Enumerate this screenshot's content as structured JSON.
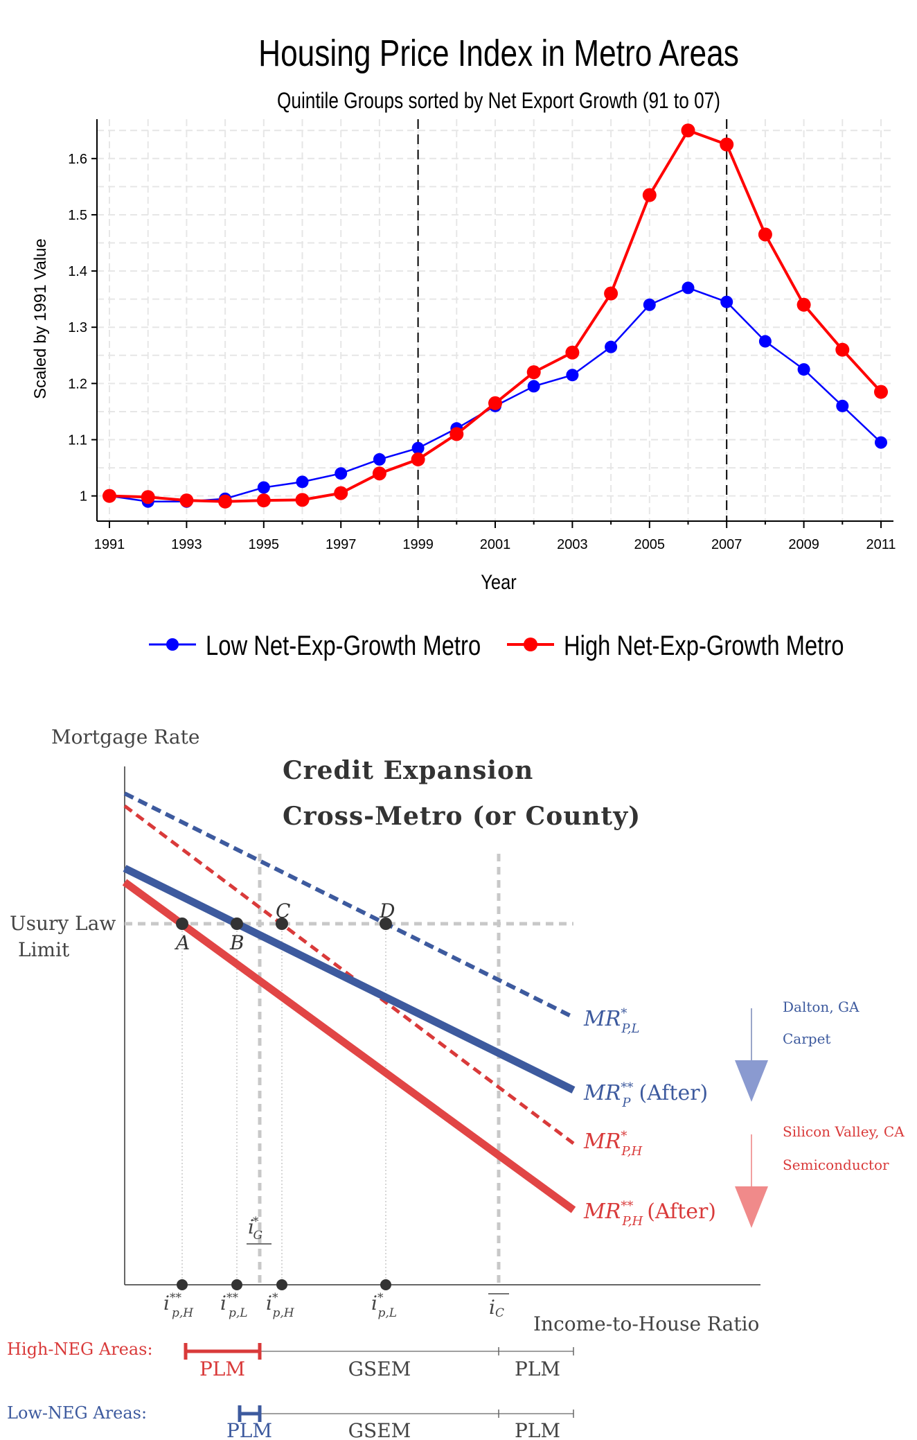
{
  "top_chart": {
    "title": "Housing Price Index in Metro Areas",
    "subtitle": "Quintile Groups sorted by Net Export Growth (91 to 07)",
    "xlabel": "Year",
    "ylabel": "Scaled by 1991 Value",
    "x_tick_labels": [
      "1991",
      "1993",
      "1995",
      "1997",
      "1999",
      "2001",
      "2003",
      "2005",
      "2007",
      "2009",
      "2011"
    ],
    "y_tick_labels": [
      "1",
      "1.1",
      "1.2",
      "1.3",
      "1.4",
      "1.5",
      "1.6"
    ],
    "legend": {
      "low_label": "Low Net-Exp-Growth Metro",
      "high_label": "High Net-Exp-Growth Metro"
    },
    "colors": {
      "low": "#0000ff",
      "high": "#ff0000"
    }
  },
  "chart_data": [
    {
      "type": "line",
      "title": "Housing Price Index in Metro Areas",
      "subtitle": "Quintile Groups sorted by Net Export Growth (91 to 07)",
      "xlabel": "Year",
      "ylabel": "Scaled by 1991 Value",
      "x": [
        1991,
        1992,
        1993,
        1994,
        1995,
        1996,
        1997,
        1998,
        1999,
        2000,
        2001,
        2002,
        2003,
        2004,
        2005,
        2006,
        2007,
        2008,
        2009,
        2010,
        2011
      ],
      "xlim": [
        1991,
        2011
      ],
      "ylim": [
        0.97,
        1.67
      ],
      "grid": true,
      "legend_position": "bottom",
      "vertical_reference_lines": [
        1999,
        2007
      ],
      "series": [
        {
          "name": "Low Net-Exp-Growth Metro",
          "color": "#0000ff",
          "values": [
            1.0,
            0.99,
            0.99,
            0.995,
            1.015,
            1.025,
            1.04,
            1.065,
            1.085,
            1.12,
            1.16,
            1.195,
            1.215,
            1.265,
            1.34,
            1.37,
            1.345,
            1.275,
            1.225,
            1.16,
            1.095
          ]
        },
        {
          "name": "High Net-Exp-Growth Metro",
          "color": "#ff0000",
          "values": [
            1.0,
            0.998,
            0.992,
            0.99,
            0.992,
            0.993,
            1.005,
            1.04,
            1.065,
            1.11,
            1.165,
            1.22,
            1.255,
            1.36,
            1.535,
            1.65,
            1.625,
            1.465,
            1.34,
            1.26,
            1.185
          ]
        }
      ]
    },
    {
      "type": "line",
      "title": "Credit Expansion",
      "subtitle": "Cross-Metro (or County)",
      "xlabel": "Income-to-House Ratio",
      "ylabel": "Mortgage Rate",
      "series": [
        {
          "name": "MR*_{P,L}",
          "color": "#3d5a9e",
          "style": "dashed"
        },
        {
          "name": "MR**_P (After)",
          "color": "#3d5a9e",
          "style": "solid"
        },
        {
          "name": "MR*_{P,H}",
          "color": "#d93a3a",
          "style": "dashed"
        },
        {
          "name": "MR**_{P,H} (After)",
          "color": "#d93a3a",
          "style": "solid"
        }
      ]
    }
  ],
  "bottom_diagram": {
    "title": "Credit Expansion",
    "subtitle": "Cross-Metro (or County)",
    "y_axis_label": "Mortgage Rate",
    "x_axis_label": "Income-to-House Ratio",
    "usury_label_line1": "Usury Law",
    "usury_label_line2": "Limit",
    "points": [
      "A",
      "B",
      "C",
      "D"
    ],
    "line_labels": {
      "mr_pl": {
        "base": "MR",
        "sup": "*",
        "sub": "P,L",
        "suffix": ""
      },
      "mr_p_after": {
        "base": "MR",
        "sup": "**",
        "sub": "P",
        "suffix": "(After)"
      },
      "mr_ph": {
        "base": "MR",
        "sup": "*",
        "sub": "P,H",
        "suffix": ""
      },
      "mr_ph_after": {
        "base": "MR",
        "sup": "**",
        "sub": "P,H",
        "suffix": "(After)"
      }
    },
    "x_tick_labels": [
      {
        "base": "i",
        "sup": "**",
        "sub": "p,H"
      },
      {
        "base": "i",
        "sup": "**",
        "sub": "p,L"
      },
      {
        "base": "i",
        "sup": "*",
        "sub": "p,H"
      },
      {
        "base": "i",
        "sup": "*",
        "sub": "p,L"
      },
      {
        "base": "i",
        "sup": "",
        "sub": "C"
      }
    ],
    "ig_label": {
      "base": "i",
      "sup": "*",
      "sub": "G"
    },
    "annotations": {
      "low": {
        "place": "Dalton, GA",
        "industry": "Carpet",
        "color": "#3d5a9e"
      },
      "high": {
        "place": "Silicon Valley, CA",
        "industry": "Semiconductor",
        "color": "#d93a3a"
      }
    },
    "regimes": {
      "high_label": "High-NEG Areas:",
      "low_label": "Low-NEG Areas:",
      "plm": "PLM",
      "gsem": "GSEM"
    },
    "colors": {
      "blue": "#3d5a9e",
      "red": "#d93a3a",
      "grey": "#c8c8c8"
    }
  }
}
